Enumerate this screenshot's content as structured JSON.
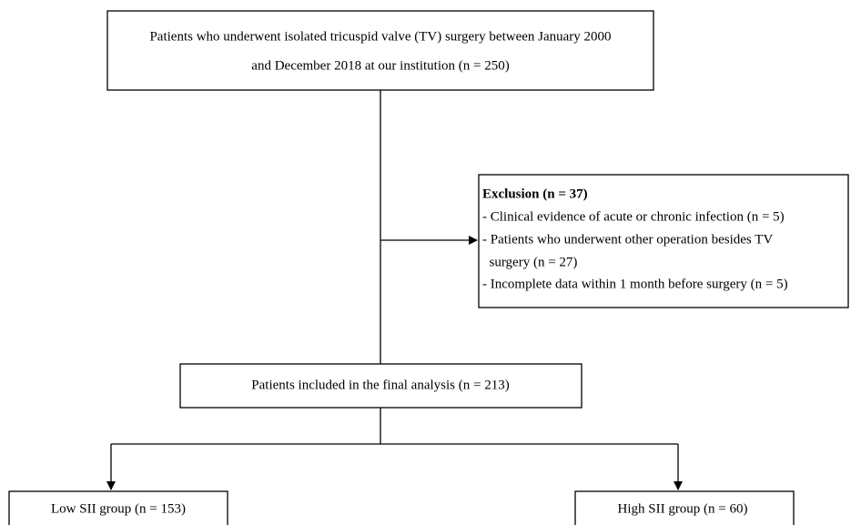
{
  "nodes": [
    {
      "label": [
        "Patients who underwent isolated tricuspid valve (TV) surgery between January 2000",
        "and December 2018 at our institution (n = 250)"
      ]
    },
    {
      "title": "Exclusion (n = 37)",
      "items": [
        "- Clinical evidence of acute or chronic infection (n = 5)",
        "- Patients who underwent other operation besides TV",
        "  surgery (n = 27)",
        "- Incomplete data within 1 month before surgery (n = 5)"
      ]
    },
    {
      "label": [
        "Patients included in the final analysis (n = 213)"
      ]
    },
    {
      "label": [
        "Low SII group (n = 153)"
      ]
    },
    {
      "label": [
        "High SII group (n = 60)"
      ]
    }
  ]
}
